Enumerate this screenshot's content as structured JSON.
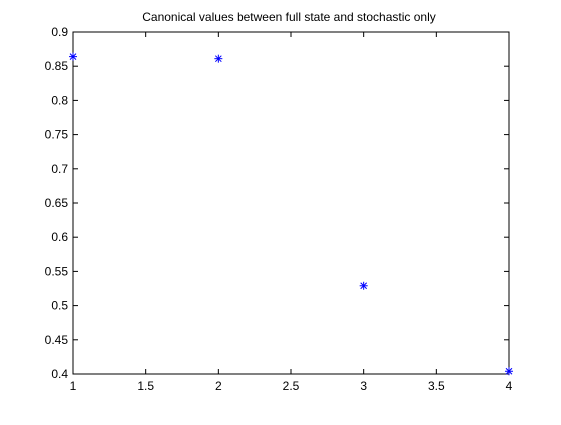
{
  "chart_data": {
    "type": "scatter",
    "title": "Canonical values between full state and stochastic only",
    "xlabel": "",
    "ylabel": "",
    "xlim": [
      1,
      4
    ],
    "ylim": [
      0.4,
      0.9
    ],
    "xticks": [
      "1",
      "1.5",
      "2",
      "2.5",
      "3",
      "3.5",
      "4"
    ],
    "yticks": [
      "0.4",
      "0.45",
      "0.5",
      "0.55",
      "0.6",
      "0.65",
      "0.7",
      "0.75",
      "0.8",
      "0.85",
      "0.9"
    ],
    "grid": false,
    "marker": "*",
    "series": [
      {
        "color": "#0000ff",
        "points": [
          {
            "x": 1,
            "y": 0.864
          },
          {
            "x": 2,
            "y": 0.861
          },
          {
            "x": 3,
            "y": 0.529
          },
          {
            "x": 4,
            "y": 0.404
          }
        ]
      }
    ]
  }
}
